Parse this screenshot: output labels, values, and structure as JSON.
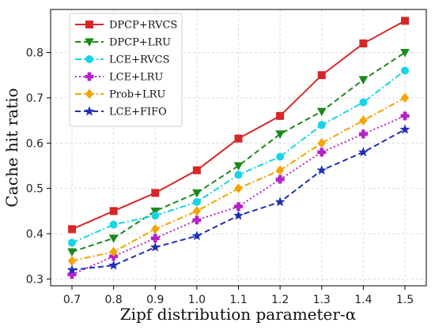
{
  "chart_data": {
    "type": "line",
    "x": [
      "0.7",
      "0.8",
      "0.9",
      "1.0",
      "1.1",
      "1.2",
      "1.3",
      "1.4",
      "1.5"
    ],
    "xlabel": "Zipf distribution parameter-α",
    "ylabel": "Cache hit ratio",
    "ylim": [
      0.285,
      0.895
    ],
    "yticks": [
      "0.3",
      "0.4",
      "0.5",
      "0.6",
      "0.7",
      "0.8"
    ],
    "grid": true,
    "legend_position": "top-left",
    "series": [
      {
        "name": "DPCP+RVCS",
        "color": "#d62728",
        "dash": "solid",
        "marker": "square",
        "values": [
          0.41,
          0.45,
          0.49,
          0.54,
          0.61,
          0.66,
          0.75,
          0.82,
          0.87
        ]
      },
      {
        "name": "DPCP+LRU",
        "color": "#1a8a1a",
        "dash": "dashed",
        "marker": "triangle-down",
        "values": [
          0.36,
          0.39,
          0.45,
          0.49,
          0.55,
          0.62,
          0.67,
          0.74,
          0.8
        ]
      },
      {
        "name": "LCE+RVCS",
        "color": "#17d4e6",
        "dash": "dashdot",
        "marker": "circle",
        "values": [
          0.38,
          0.42,
          0.44,
          0.47,
          0.53,
          0.57,
          0.64,
          0.69,
          0.76
        ]
      },
      {
        "name": "LCE+LRU",
        "color": "#b522c8",
        "dash": "dotted",
        "marker": "plus",
        "values": [
          0.31,
          0.35,
          0.39,
          0.43,
          0.46,
          0.52,
          0.58,
          0.62,
          0.66
        ]
      },
      {
        "name": "Prob+LRU",
        "color": "#f5a300",
        "dash": "dashdot",
        "marker": "diamond",
        "values": [
          0.34,
          0.36,
          0.41,
          0.45,
          0.5,
          0.54,
          0.6,
          0.65,
          0.7
        ]
      },
      {
        "name": "LCE+FIFO",
        "color": "#1f2fb5",
        "dash": "dashed",
        "marker": "star",
        "values": [
          0.32,
          0.33,
          0.37,
          0.395,
          0.44,
          0.47,
          0.54,
          0.58,
          0.63
        ]
      }
    ]
  }
}
